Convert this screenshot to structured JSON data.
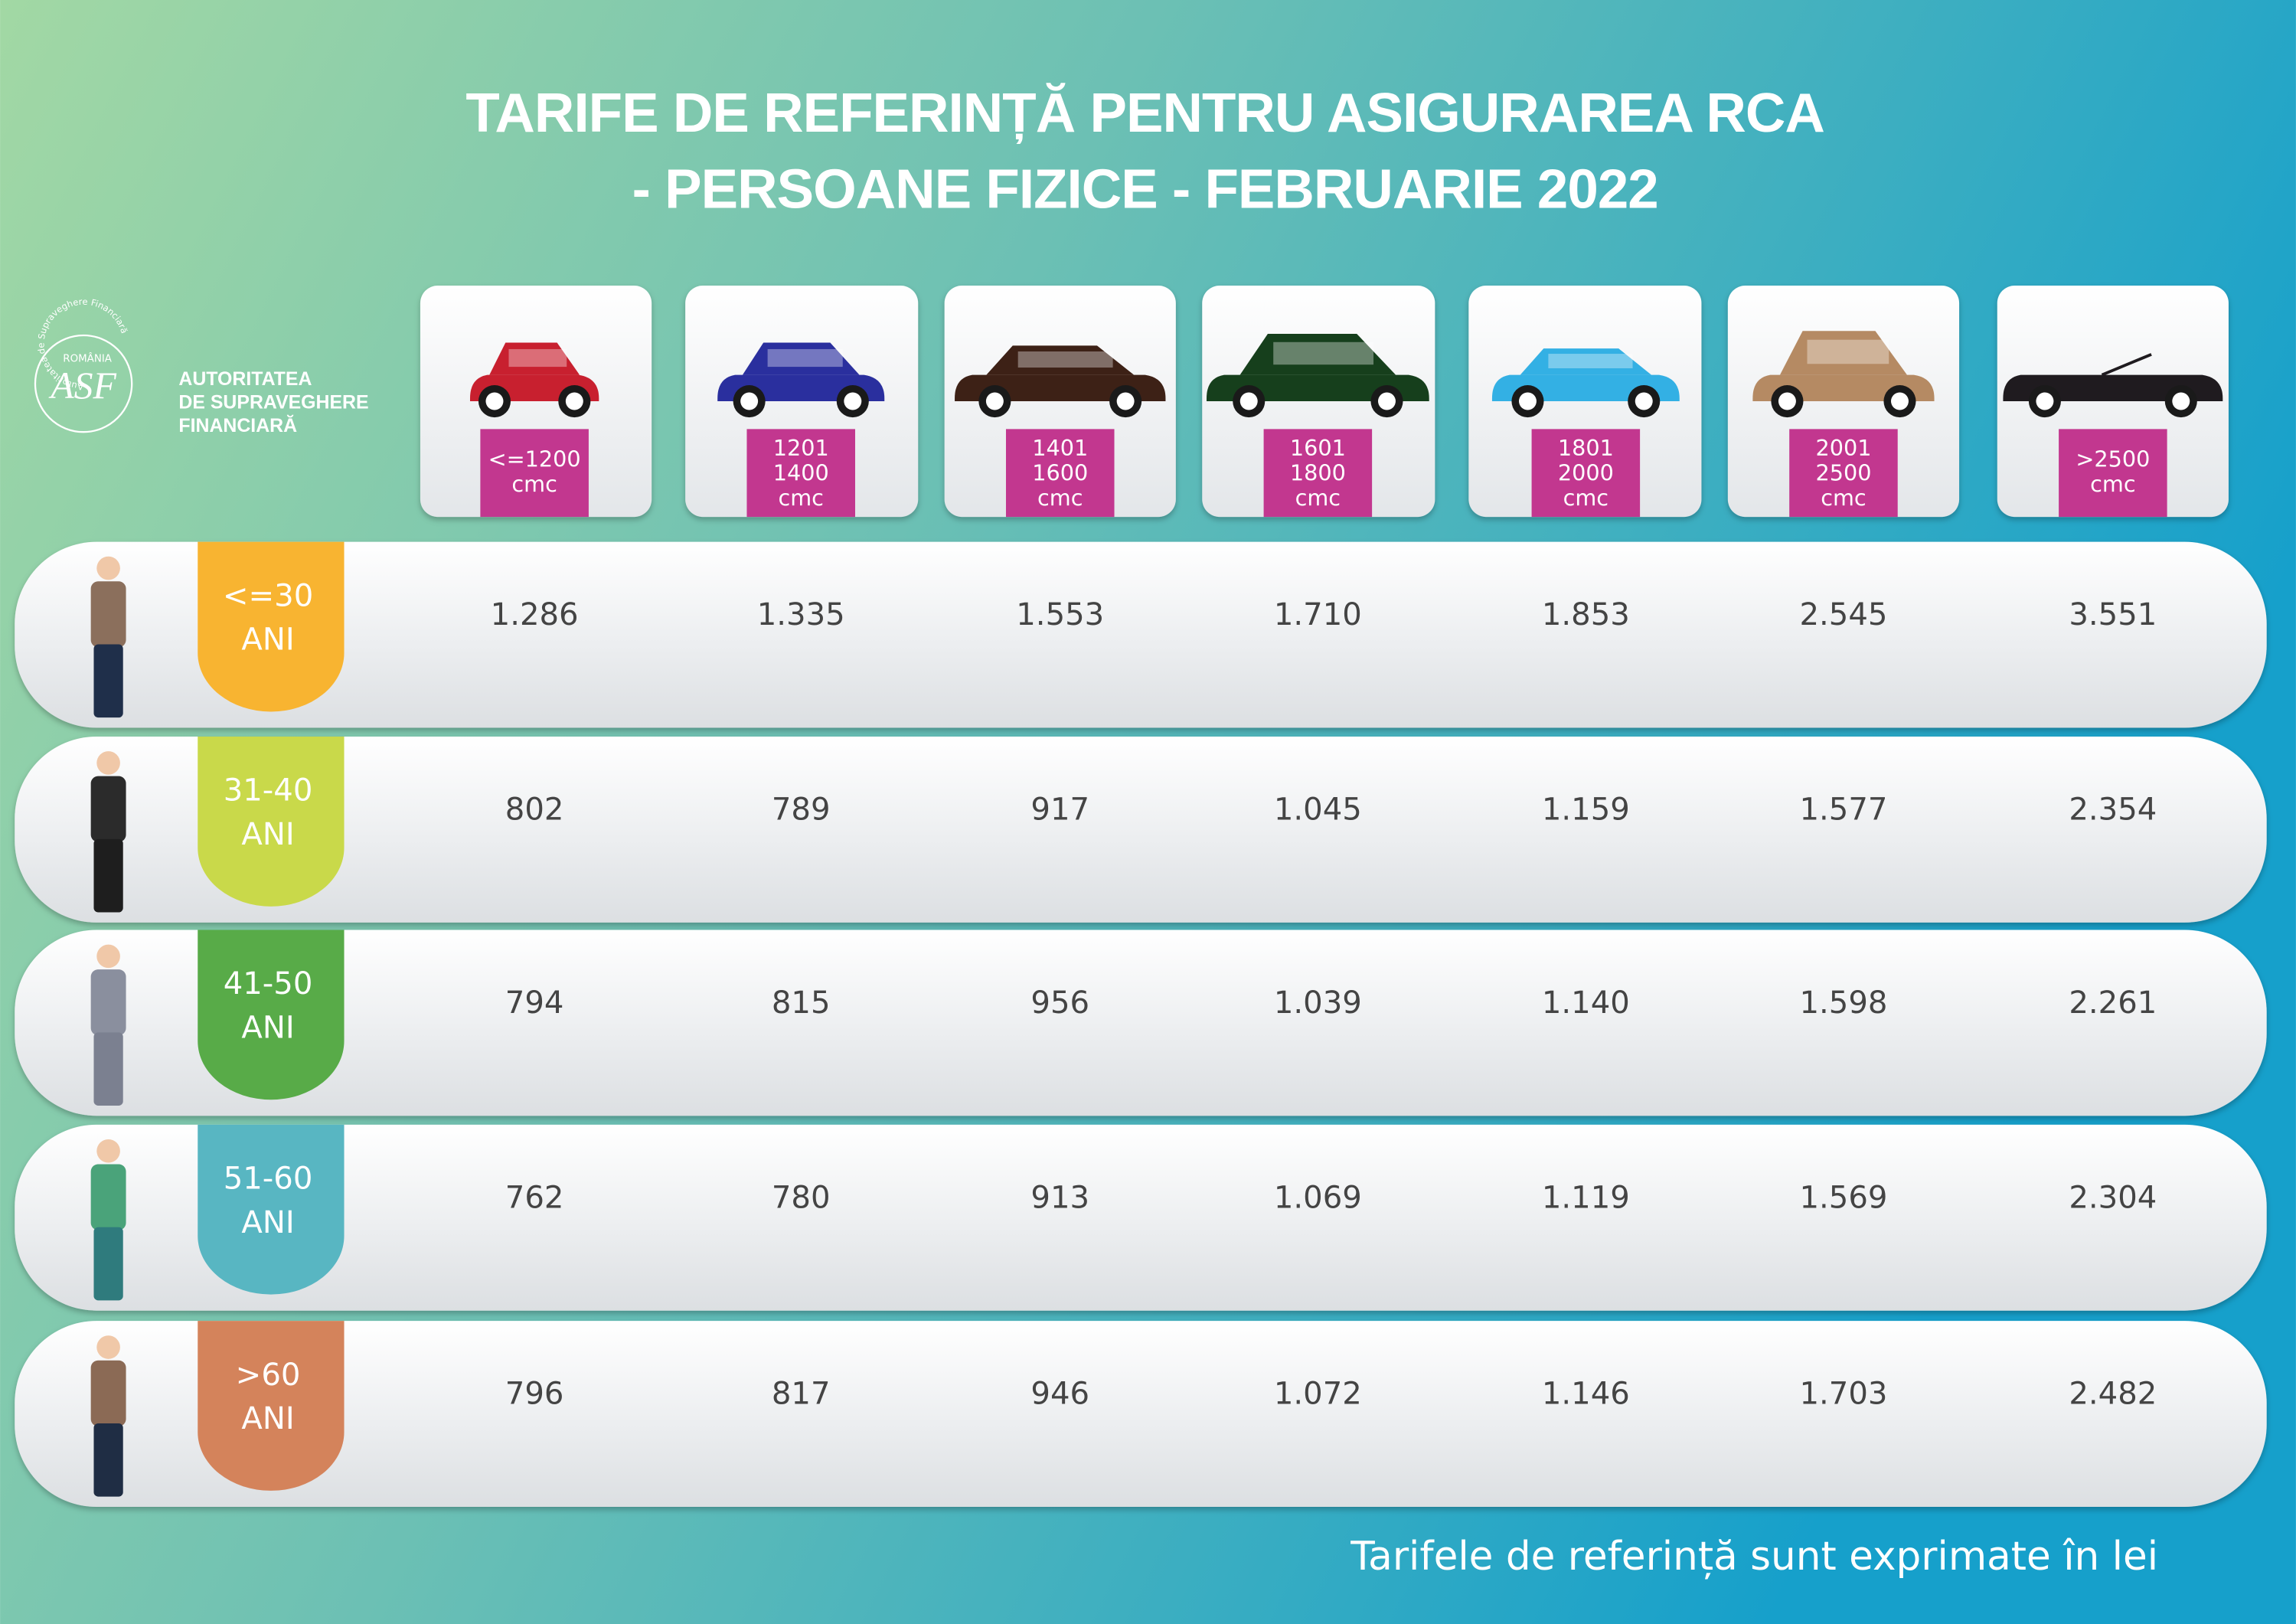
{
  "header": {
    "title_lines": [
      "TARIFE DE REFERINȚĂ PENTRU ASIGURAREA RCA",
      "- PERSOANE FIZICE - FEBRUARIE 2022"
    ]
  },
  "logo": {
    "country": "ROMÂNIA",
    "ring": "Autoritatea de Supraveghere Financiară",
    "mark": "ASF",
    "name_lines": [
      "AUTORITATEA",
      "DE SUPRAVEGHERE",
      "FINANCIARĂ"
    ]
  },
  "table": {
    "columns": [
      {
        "lines": [
          "<=1200",
          "cmc"
        ]
      },
      {
        "lines": [
          "1201",
          "1400",
          "cmc"
        ]
      },
      {
        "lines": [
          "1401",
          "1600",
          "cmc"
        ]
      },
      {
        "lines": [
          "1601",
          "1800",
          "cmc"
        ]
      },
      {
        "lines": [
          "1801",
          "2000",
          "cmc"
        ]
      },
      {
        "lines": [
          "2001",
          "2500",
          "cmc"
        ]
      },
      {
        "lines": [
          ">2500",
          "cmc"
        ]
      }
    ],
    "rows": [
      {
        "age": [
          "<=30",
          "ANI"
        ],
        "values": [
          "1.286",
          "1.335",
          "1.553",
          "1.710",
          "1.853",
          "2.545",
          "3.551"
        ]
      },
      {
        "age": [
          "31-40",
          "ANI"
        ],
        "values": [
          "802",
          "789",
          "917",
          "1.045",
          "1.159",
          "1.577",
          "2.354"
        ]
      },
      {
        "age": [
          "41-50",
          "ANI"
        ],
        "values": [
          "794",
          "815",
          "956",
          "1.039",
          "1.140",
          "1.598",
          "2.261"
        ]
      },
      {
        "age": [
          "51-60",
          "ANI"
        ],
        "values": [
          "762",
          "780",
          "913",
          "1.069",
          "1.119",
          "1.569",
          "2.304"
        ]
      },
      {
        "age": [
          ">60",
          "ANI"
        ],
        "values": [
          "796",
          "817",
          "946",
          "1.072",
          "1.146",
          "1.703",
          "2.482"
        ]
      }
    ]
  },
  "footer": "Tarifele de referință sunt exprimate în lei"
}
